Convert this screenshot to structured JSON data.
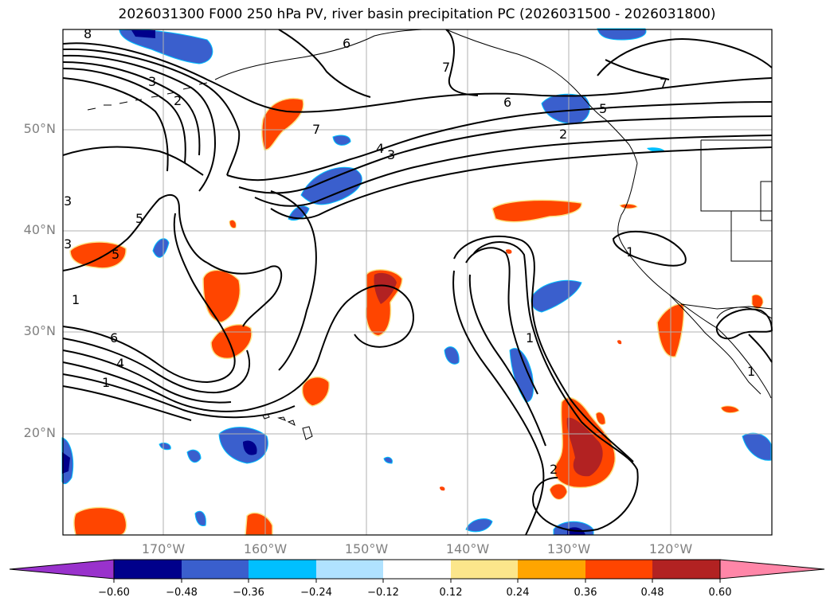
{
  "title": "2026031300 F000 250 hPa PV, river basin precipitation PC (2026031500 - 2026031800)",
  "lat_labels": [
    "50°N",
    "40°N",
    "30°N",
    "20°N"
  ],
  "lon_labels": [
    "170°W",
    "160°W",
    "150°W",
    "140°W",
    "130°W",
    "120°W"
  ],
  "colorbar": {
    "ticks": [
      "−0.60",
      "−0.48",
      "−0.36",
      "−0.24",
      "−0.12",
      "0.12",
      "0.24",
      "0.36",
      "0.48",
      "0.60"
    ],
    "colors": [
      "#9932cc",
      "#00008b",
      "#3a5fcd",
      "#00bfff",
      "#b0e2ff",
      "#ffffff",
      "#fce68b",
      "#ffa500",
      "#ff4500",
      "#b22222",
      "#ff86a8"
    ]
  },
  "contour_labels": [
    "8",
    "3",
    "2",
    "6",
    "7",
    "6",
    "5",
    "2",
    "7",
    "4",
    "3",
    "7",
    "3",
    "5",
    "5",
    "3",
    "1",
    "6",
    "4",
    "1",
    "1",
    "1",
    "2",
    "1"
  ],
  "colors": {
    "coast": "#000000",
    "grid": "#b0b0b0",
    "pv_contour": "#000000"
  }
}
